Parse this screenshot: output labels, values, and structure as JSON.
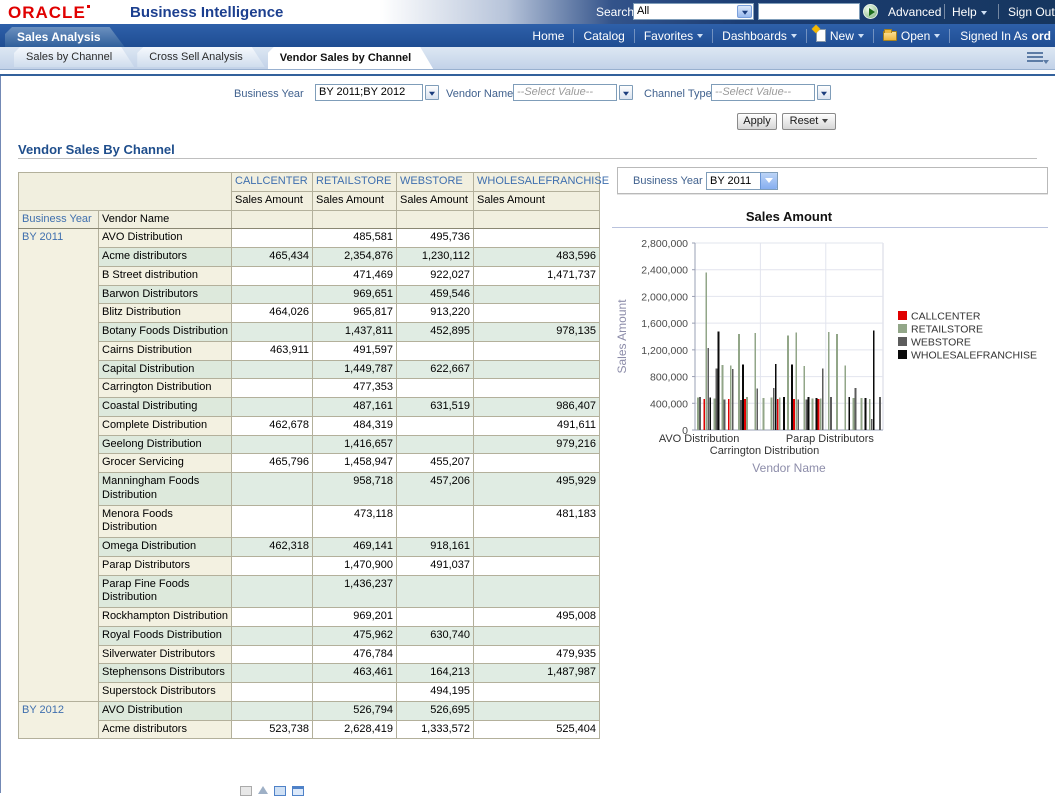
{
  "masthead": {
    "brand": "ORACLE",
    "product": "Business Intelligence",
    "search_label": "Search",
    "search_scope": "All",
    "search_value": "",
    "advanced": "Advanced",
    "help": "Help",
    "sign_out": "Sign Out"
  },
  "navbar": {
    "root_tab": "Sales Analysis",
    "home": "Home",
    "catalog": "Catalog",
    "favorites": "Favorites",
    "dashboards": "Dashboards",
    "new_label": "New",
    "open_label": "Open",
    "signed_in_as": "Signed In As",
    "username": "ord"
  },
  "subtabs": [
    {
      "label": "Sales by Channel",
      "active": false
    },
    {
      "label": "Cross Sell Analysis",
      "active": false
    },
    {
      "label": "Vendor Sales by Channel",
      "active": true
    }
  ],
  "filters": {
    "business_year_label": "Business Year",
    "business_year_value": "BY 2011;BY 2012",
    "vendor_name_label": "Vendor Name",
    "vendor_name_value": "--Select Value--",
    "channel_type_label": "Channel Type",
    "channel_type_value": "--Select Value--",
    "apply_label": "Apply",
    "reset_label": "Reset"
  },
  "section_title": "Vendor Sales By Channel",
  "table": {
    "channels": [
      "CALLCENTER",
      "RETAILSTORE",
      "WEBSTORE",
      "WHOLESALEFRANCHISE"
    ],
    "measure_label": "Sales Amount",
    "row_header_year": "Business Year",
    "row_header_vendor": "Vendor Name",
    "groups": [
      {
        "year": "BY 2011",
        "rows": [
          {
            "vendor": "AVO Distribution",
            "cells": [
              "",
              "485,581",
              "495,736",
              ""
            ]
          },
          {
            "vendor": "Acme distributors",
            "cells": [
              "465,434",
              "2,354,876",
              "1,230,112",
              "483,596"
            ]
          },
          {
            "vendor": "B Street distribution",
            "cells": [
              "",
              "471,469",
              "922,027",
              "1,471,737"
            ]
          },
          {
            "vendor": "Barwon Distributors",
            "cells": [
              "",
              "969,651",
              "459,546",
              ""
            ]
          },
          {
            "vendor": "Blitz Distribution",
            "cells": [
              "464,026",
              "965,817",
              "913,220",
              ""
            ]
          },
          {
            "vendor": "Botany Foods Distribution",
            "cells": [
              "",
              "1,437,811",
              "452,895",
              "978,135"
            ]
          },
          {
            "vendor": "Cairns Distribution",
            "cells": [
              "463,911",
              "491,597",
              "",
              ""
            ]
          },
          {
            "vendor": "Capital Distribution",
            "cells": [
              "",
              "1,449,787",
              "622,667",
              ""
            ]
          },
          {
            "vendor": "Carrington Distribution",
            "cells": [
              "",
              "477,353",
              "",
              ""
            ]
          },
          {
            "vendor": "Coastal Distributing",
            "cells": [
              "",
              "487,161",
              "631,519",
              "986,407"
            ]
          },
          {
            "vendor": "Complete Distribution",
            "cells": [
              "462,678",
              "484,319",
              "",
              "491,611"
            ]
          },
          {
            "vendor": "Geelong Distribution",
            "cells": [
              "",
              "1,416,657",
              "",
              "979,216"
            ]
          },
          {
            "vendor": "Grocer Servicing",
            "cells": [
              "465,796",
              "1,458,947",
              "455,207",
              ""
            ]
          },
          {
            "vendor": "Manningham Foods Distribution",
            "cells": [
              "",
              "958,718",
              "457,206",
              "495,929"
            ]
          },
          {
            "vendor": "Menora Foods Distribution",
            "cells": [
              "",
              "473,118",
              "",
              "481,183"
            ]
          },
          {
            "vendor": "Omega Distribution",
            "cells": [
              "462,318",
              "469,141",
              "918,161",
              ""
            ]
          },
          {
            "vendor": "Parap Distributors",
            "cells": [
              "",
              "1,470,900",
              "491,037",
              ""
            ]
          },
          {
            "vendor": "Parap Fine Foods Distribution",
            "cells": [
              "",
              "1,436,237",
              "",
              ""
            ]
          },
          {
            "vendor": "Rockhampton Distribution",
            "cells": [
              "",
              "969,201",
              "",
              "495,008"
            ]
          },
          {
            "vendor": "Royal Foods Distribution",
            "cells": [
              "",
              "475,962",
              "630,740",
              ""
            ]
          },
          {
            "vendor": "Silverwater Distributors",
            "cells": [
              "",
              "476,784",
              "",
              "479,935"
            ]
          },
          {
            "vendor": "Stephensons Distributors",
            "cells": [
              "",
              "463,461",
              "164,213",
              "1,487,987"
            ]
          },
          {
            "vendor": "Superstock Distributors",
            "cells": [
              "",
              "",
              "494,195",
              ""
            ]
          }
        ]
      },
      {
        "year": "BY 2012",
        "rows": [
          {
            "vendor": "AVO Distribution",
            "cells": [
              "",
              "526,794",
              "526,695",
              ""
            ]
          },
          {
            "vendor": "Acme distributors",
            "cells": [
              "523,738",
              "2,628,419",
              "1,333,572",
              "525,404"
            ]
          }
        ]
      }
    ]
  },
  "chart_panel": {
    "prompt_label": "Business Year",
    "prompt_value": "BY 2011",
    "title": "Sales Amount"
  },
  "chart_data": {
    "type": "bar",
    "title": "Sales Amount",
    "xlabel": "Vendor Name",
    "ylabel": "Sales Amount",
    "ylim": [
      0,
      2800000
    ],
    "ytick_step": 400000,
    "grid": true,
    "legend_position": "right",
    "series_colors": [
      "#e00000",
      "#92a688",
      "#5c5c5c",
      "#0a0a0a"
    ],
    "categories": [
      "AVO Distribution",
      "Acme distributors",
      "B Street distribution",
      "Barwon Distributors",
      "Blitz Distribution",
      "Botany Foods Distribution",
      "Cairns Distribution",
      "Capital Distribution",
      "Carrington Distribution",
      "Coastal Distributing",
      "Complete Distribution",
      "Geelong Distribution",
      "Grocer Servicing",
      "Manningham Foods Distribution",
      "Menora Foods Distribution",
      "Omega Distribution",
      "Parap Distributors",
      "Parap Fine Foods Distribution",
      "Rockhampton Distribution",
      "Royal Foods Distribution",
      "Silverwater Distributors",
      "Stephensons Distributors",
      "Superstock Distributors"
    ],
    "series": [
      {
        "name": "CALLCENTER",
        "values": [
          null,
          465434,
          null,
          null,
          464026,
          null,
          463911,
          null,
          null,
          null,
          462678,
          null,
          465796,
          null,
          null,
          462318,
          null,
          null,
          null,
          null,
          null,
          null,
          null
        ]
      },
      {
        "name": "RETAILSTORE",
        "values": [
          485581,
          2354876,
          471469,
          969651,
          965817,
          1437811,
          491597,
          1449787,
          477353,
          487161,
          484319,
          1416657,
          1458947,
          958718,
          473118,
          469141,
          1470900,
          1436237,
          969201,
          475962,
          476784,
          463461,
          null
        ]
      },
      {
        "name": "WEBSTORE",
        "values": [
          495736,
          1230112,
          922027,
          459546,
          913220,
          452895,
          null,
          622667,
          null,
          631519,
          null,
          null,
          455207,
          457206,
          null,
          918161,
          491037,
          null,
          null,
          630740,
          null,
          164213,
          494195
        ]
      },
      {
        "name": "WHOLESALEFRANCHISE",
        "values": [
          null,
          483596,
          1471737,
          null,
          null,
          978135,
          null,
          null,
          null,
          986407,
          491611,
          979216,
          null,
          495929,
          481183,
          null,
          null,
          null,
          495008,
          null,
          479935,
          1487987,
          null
        ]
      }
    ],
    "x_ticks": [
      {
        "label": "AVO Distribution",
        "group": 0,
        "row": 0
      },
      {
        "label": "Carrington Distribution",
        "group": 8,
        "row": 1
      },
      {
        "label": "Parap Distributors",
        "group": 16,
        "row": 0
      }
    ]
  },
  "footer_pager": {
    "icons": [
      "table-view-icon",
      "up-arrow-icon",
      "page-first-icon",
      "page-rows-icon"
    ]
  },
  "colors": {
    "brand_red": "#e00000",
    "title_blue": "#1c3f8f",
    "heading_blue": "#1f4e8c",
    "header_beige": "#f1efdf",
    "band_green": "#e0ece3"
  }
}
